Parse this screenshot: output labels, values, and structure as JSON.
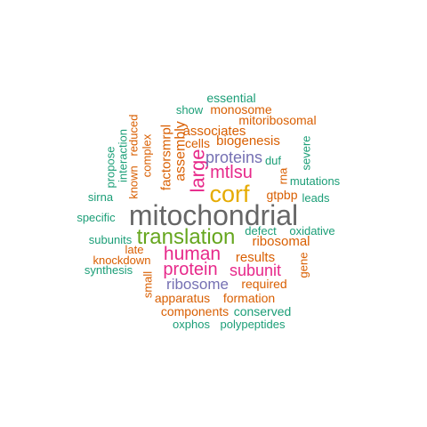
{
  "colors": {
    "green": "#1b9e77",
    "orange": "#d95f02",
    "purple": "#7570b3",
    "magenta": "#e7298a",
    "olive": "#66a61e",
    "gold": "#e6ab02",
    "gray": "#666666"
  },
  "words": [
    {
      "id": "essential",
      "text": "essential",
      "color": "green"
    },
    {
      "id": "show",
      "text": "show",
      "color": "green"
    },
    {
      "id": "monosome",
      "text": "monosome",
      "color": "orange"
    },
    {
      "id": "mitoribosomal",
      "text": "mitoribosomal",
      "color": "orange"
    },
    {
      "id": "interaction",
      "text": "interaction",
      "color": "green"
    },
    {
      "id": "reduced",
      "text": "reduced",
      "color": "orange"
    },
    {
      "id": "propose",
      "text": "propose",
      "color": "green"
    },
    {
      "id": "known",
      "text": "known",
      "color": "orange"
    },
    {
      "id": "complex",
      "text": "complex",
      "color": "orange"
    },
    {
      "id": "factorsmrpl",
      "text": "factorsmrpl",
      "color": "orange"
    },
    {
      "id": "assembly",
      "text": "assembly",
      "color": "orange"
    },
    {
      "id": "large",
      "text": "large",
      "color": "magenta"
    },
    {
      "id": "associates",
      "text": "associates",
      "color": "orange"
    },
    {
      "id": "cells",
      "text": "cells",
      "color": "orange"
    },
    {
      "id": "biogenesis",
      "text": "biogenesis",
      "color": "orange"
    },
    {
      "id": "proteins",
      "text": "proteins",
      "color": "purple"
    },
    {
      "id": "duf",
      "text": "duf",
      "color": "green"
    },
    {
      "id": "rna",
      "text": "rna",
      "color": "orange"
    },
    {
      "id": "severe",
      "text": "severe",
      "color": "green"
    },
    {
      "id": "mtlsu",
      "text": "mtlsu",
      "color": "magenta"
    },
    {
      "id": "mutations",
      "text": "mutations",
      "color": "green"
    },
    {
      "id": "corf",
      "text": "corf",
      "color": "gold"
    },
    {
      "id": "gtpbp",
      "text": "gtpbp",
      "color": "orange"
    },
    {
      "id": "sirna",
      "text": "sirna",
      "color": "green"
    },
    {
      "id": "leads",
      "text": "leads",
      "color": "green"
    },
    {
      "id": "specific",
      "text": "specific",
      "color": "green"
    },
    {
      "id": "mitochondrial",
      "text": "mitochondrial",
      "color": "gray"
    },
    {
      "id": "defect",
      "text": "defect",
      "color": "green"
    },
    {
      "id": "oxidative",
      "text": "oxidative",
      "color": "green"
    },
    {
      "id": "translation",
      "text": "translation",
      "color": "olive"
    },
    {
      "id": "subunits",
      "text": "subunits",
      "color": "green"
    },
    {
      "id": "ribosomal",
      "text": "ribosomal",
      "color": "orange"
    },
    {
      "id": "late",
      "text": "late",
      "color": "orange"
    },
    {
      "id": "human",
      "text": "human",
      "color": "magenta"
    },
    {
      "id": "results",
      "text": "results",
      "color": "orange"
    },
    {
      "id": "gene",
      "text": "gene",
      "color": "orange"
    },
    {
      "id": "knockdown",
      "text": "knockdown",
      "color": "orange"
    },
    {
      "id": "protein",
      "text": "protein",
      "color": "magenta"
    },
    {
      "id": "subunit",
      "text": "subunit",
      "color": "magenta"
    },
    {
      "id": "synthesis",
      "text": "synthesis",
      "color": "green"
    },
    {
      "id": "small",
      "text": "small",
      "color": "orange"
    },
    {
      "id": "ribosome",
      "text": "ribosome",
      "color": "purple"
    },
    {
      "id": "required",
      "text": "required",
      "color": "orange"
    },
    {
      "id": "apparatus",
      "text": "apparatus",
      "color": "orange"
    },
    {
      "id": "formation",
      "text": "formation",
      "color": "orange"
    },
    {
      "id": "components",
      "text": "components",
      "color": "orange"
    },
    {
      "id": "conserved",
      "text": "conserved",
      "color": "green"
    },
    {
      "id": "oxphos",
      "text": "oxphos",
      "color": "green"
    },
    {
      "id": "polypeptides",
      "text": "polypeptides",
      "color": "green"
    }
  ]
}
